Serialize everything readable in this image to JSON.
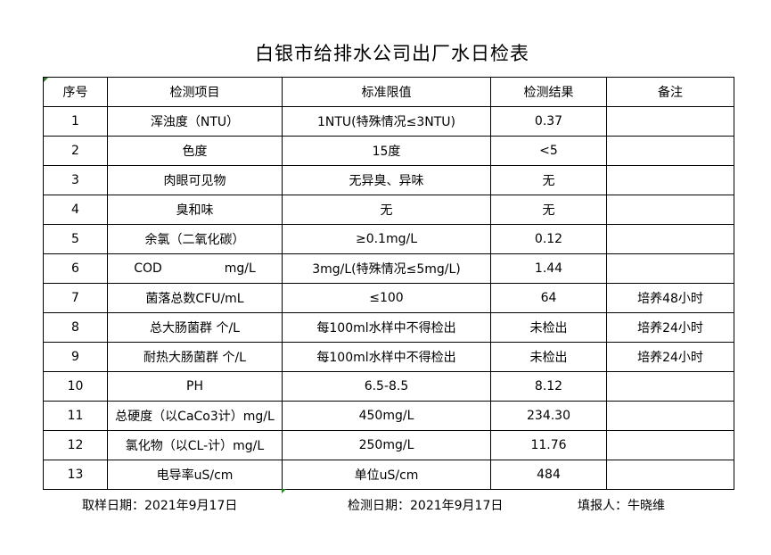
{
  "title": "白银市给排水公司出厂水日检表",
  "headers": [
    "序号",
    "检测项目",
    "标准限值",
    "检测结果",
    "备注"
  ],
  "rows": [
    [
      "1",
      "浑浊度（NTU）",
      "1NTU(特殊情况≤3NTU)",
      "0.37",
      ""
    ],
    [
      "2",
      "色度",
      "15度",
      "<5",
      ""
    ],
    [
      "3",
      "肉眼可见物",
      "无异臭、异味",
      "无",
      ""
    ],
    [
      "4",
      "臭和味",
      "无",
      "无",
      ""
    ],
    [
      "5",
      "余氯（二氧化碳）",
      "≥0.1mg/L",
      "0.12",
      ""
    ],
    [
      "6",
      "COD mg/L",
      "3mg/L(特殊情况≤5mg/L)",
      "1.44",
      ""
    ],
    [
      "7",
      "菌落总数CFU/mL",
      "≤100",
      "64",
      "培养48小时"
    ],
    [
      "8",
      "总大肠菌群 个/L",
      "每100ml水样中不得检出",
      "未检出",
      "培养24小时"
    ],
    [
      "9",
      "耐热大肠菌群 个/L",
      "每100ml水样中不得检出",
      "未检出",
      "培养24小时"
    ],
    [
      "10",
      "PH",
      "6.5-8.5",
      "8.12",
      ""
    ],
    [
      "11",
      "总硬度（以CaCo3计）mg/L",
      "450mg/L",
      "234.30",
      ""
    ],
    [
      "12",
      "氯化物（以CL-计）mg/L",
      "250mg/L",
      "11.76",
      ""
    ],
    [
      "13",
      "电导率uS/cm",
      "单位uS/cm",
      "484",
      ""
    ]
  ],
  "cod_parts": [
    "COD",
    "mg/L"
  ],
  "footer": {
    "sample_date": "取样日期：2021年9月17日",
    "test_date": "检测日期：2021年9月17日",
    "reporter": "填报人：牛晓维"
  }
}
